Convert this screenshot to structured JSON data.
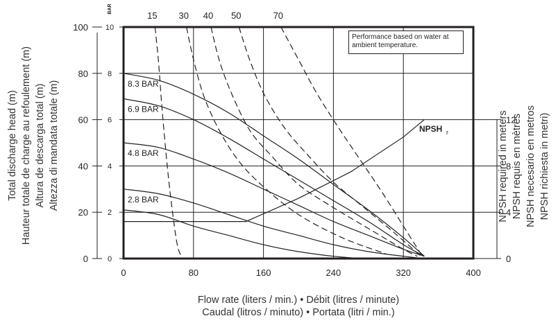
{
  "chart_data": {
    "type": "line",
    "xlabel_lines": [
      "Flow rate (liters / min.) • Débit (litres / minute)",
      "Caudal (litros / minuto) • Portata (litri / min.)"
    ],
    "ylabel_left_lines": [
      "Total discharge head (m)",
      "Hauteur totale de charge au refoulement (m)",
      "Altura de descarga total (m)",
      "Altezza di mandata totale (m)"
    ],
    "ylabel_right_lines": [
      "NPSH required in meters",
      "NPSH requis en mètres",
      "NPSH necesario en metros",
      "NPSH richiesta in metri)"
    ],
    "bar_axis_label": "BAR",
    "note": "Performance based on water at ambient temperature.",
    "xlim": [
      0,
      400
    ],
    "ylim": [
      0,
      100
    ],
    "x_ticks": [
      0,
      80,
      160,
      240,
      320,
      400
    ],
    "y_ticks_m": [
      0,
      20,
      40,
      60,
      80,
      100
    ],
    "y_ticks_bar": [
      0,
      2,
      4,
      6,
      8,
      10
    ],
    "y_ticks_npsh": [
      0,
      4,
      8,
      12
    ],
    "npsh_max": 20,
    "grid": true,
    "pressure_series": [
      {
        "name": "8.3 BAR",
        "label": "8.3 BAR",
        "x": [
          0,
          40,
          80,
          120,
          160,
          200,
          240,
          280,
          320,
          344
        ],
        "y": [
          80,
          77,
          71,
          63,
          53,
          43,
          32,
          21,
          9,
          1
        ]
      },
      {
        "name": "6.9 BAR",
        "label": "6.9 BAR",
        "x": [
          0,
          40,
          80,
          120,
          160,
          200,
          240,
          280,
          320,
          344
        ],
        "y": [
          69,
          66,
          60,
          52,
          43,
          34,
          25,
          16,
          6,
          1
        ]
      },
      {
        "name": "4.8 BAR",
        "label": "4.8 BAR",
        "x": [
          0,
          40,
          80,
          120,
          160,
          200,
          240,
          280,
          320,
          344
        ],
        "y": [
          50,
          48,
          43,
          37,
          30,
          23,
          16,
          10,
          4,
          1
        ]
      },
      {
        "name": "2.8 BAR",
        "label": "2.8 BAR",
        "x": [
          0,
          40,
          80,
          120,
          160,
          200,
          240,
          280,
          320,
          344
        ],
        "y": [
          30,
          28,
          24,
          19,
          14,
          10,
          6,
          3,
          1,
          0
        ]
      },
      {
        "name": "",
        "label": "",
        "x": [
          0,
          40,
          80,
          120,
          160,
          200,
          240,
          272
        ],
        "y": [
          21,
          19,
          14,
          10,
          6,
          3,
          1,
          0
        ]
      }
    ],
    "air_series": [
      {
        "name": "15",
        "label": "15",
        "x": [
          36,
          40,
          44,
          50,
          56,
          62,
          68
        ],
        "y": [
          100,
          85,
          65,
          40,
          20,
          5,
          0
        ]
      },
      {
        "name": "30",
        "label": "30",
        "x": [
          72,
          80,
          92,
          110,
          132,
          160,
          200,
          250,
          300
        ],
        "y": [
          100,
          86,
          70,
          55,
          42,
          31,
          19,
          9,
          2
        ]
      },
      {
        "name": "40",
        "label": "40",
        "x": [
          100,
          110,
          125,
          145,
          170,
          200,
          240,
          280,
          320,
          336
        ],
        "y": [
          100,
          85,
          70,
          55,
          44,
          32,
          22,
          13,
          4,
          1
        ]
      },
      {
        "name": "50",
        "label": "50",
        "x": [
          132,
          145,
          162,
          185,
          210,
          240,
          275,
          310,
          340
        ],
        "y": [
          100,
          85,
          70,
          56,
          45,
          33,
          22,
          11,
          1
        ]
      },
      {
        "name": "70",
        "label": "70",
        "x": [
          180,
          200,
          220,
          245,
          270,
          295,
          320,
          340
        ],
        "y": [
          100,
          86,
          72,
          57,
          43,
          29,
          14,
          2
        ]
      }
    ],
    "npsh_series": {
      "name": "NPSHr",
      "label_main": "NPSH",
      "label_sub": "r",
      "x": [
        0,
        80,
        140,
        200,
        260,
        320,
        344
      ],
      "y_npsh": [
        3.2,
        3.2,
        3.2,
        5.2,
        7.5,
        10.5,
        12
      ]
    }
  }
}
